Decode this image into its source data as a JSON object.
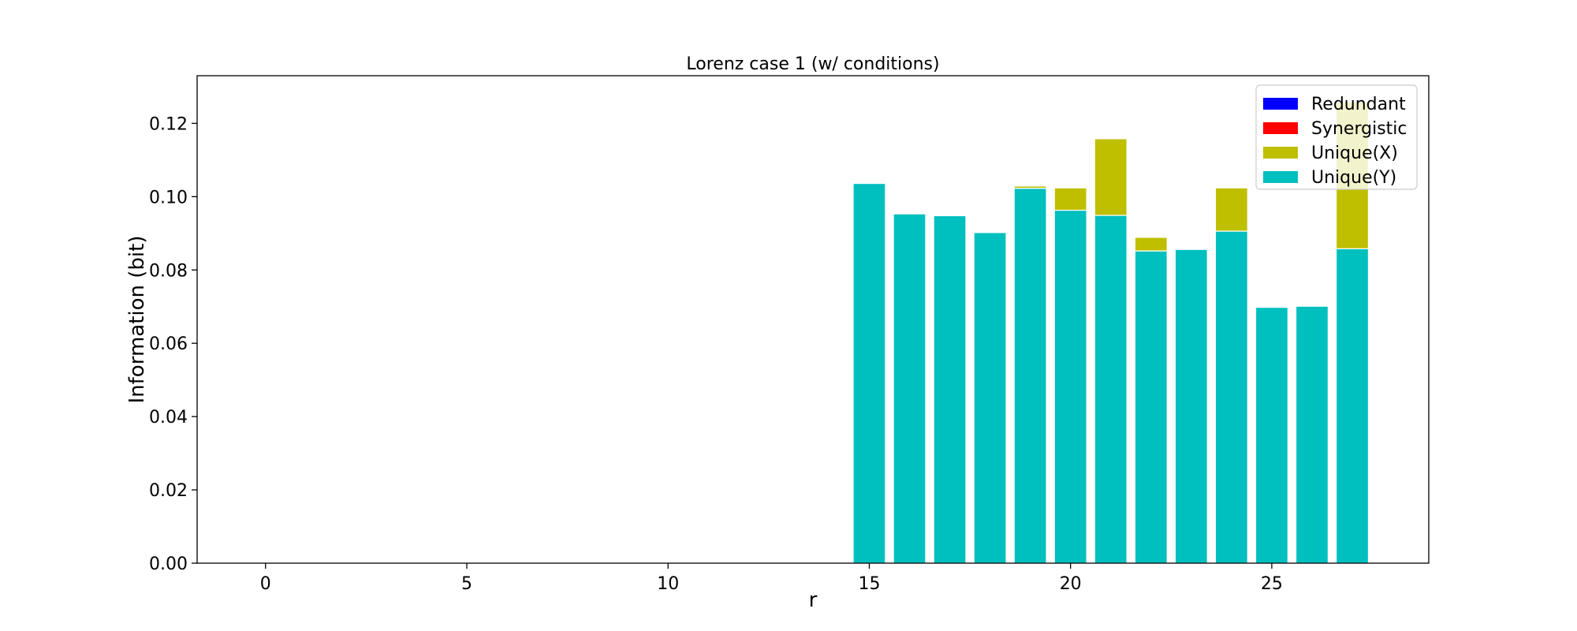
{
  "chart_data": {
    "type": "bar",
    "stacked": true,
    "title": "Lorenz case 1 (w/ conditions)",
    "xlabel": "r",
    "ylabel": "Information (bit)",
    "xlim": [
      -1.7,
      28.9
    ],
    "ylim": [
      0,
      0.133
    ],
    "xticks": [
      0,
      5,
      10,
      15,
      20,
      25
    ],
    "yticks": [
      0.0,
      0.02,
      0.04,
      0.06,
      0.08,
      0.1,
      0.12
    ],
    "ytick_labels": [
      "0.00",
      "0.02",
      "0.04",
      "0.06",
      "0.08",
      "0.10",
      "0.12"
    ],
    "x": [
      15,
      16,
      17,
      18,
      19,
      20,
      21,
      22,
      23,
      24,
      25,
      26,
      27
    ],
    "series": [
      {
        "name": "Unique(Y)",
        "color": "#00bfbf",
        "values": [
          0.1036,
          0.0953,
          0.0948,
          0.0902,
          0.1023,
          0.0963,
          0.0949,
          0.0852,
          0.0856,
          0.0906,
          0.0698,
          0.0701,
          0.0858
        ]
      },
      {
        "name": "Unique(X)",
        "color": "#bfbf00",
        "values": [
          0,
          0,
          0,
          0,
          0.0006,
          0.0061,
          0.0209,
          0.0037,
          0,
          0.0118,
          0,
          0,
          0.04
        ]
      },
      {
        "name": "Synergistic",
        "color": "#ff0000",
        "values": [
          0,
          0,
          0,
          0,
          0,
          0,
          0,
          0,
          0,
          0,
          0,
          0,
          0
        ]
      },
      {
        "name": "Redundant",
        "color": "#0000ff",
        "values": [
          0,
          0,
          0,
          0,
          0,
          0,
          0,
          0,
          0,
          0,
          0,
          0,
          0
        ]
      }
    ],
    "legend_order": [
      "Redundant",
      "Synergistic",
      "Unique(X)",
      "Unique(Y)"
    ],
    "legend_placement": "top-right",
    "grid": false
  }
}
